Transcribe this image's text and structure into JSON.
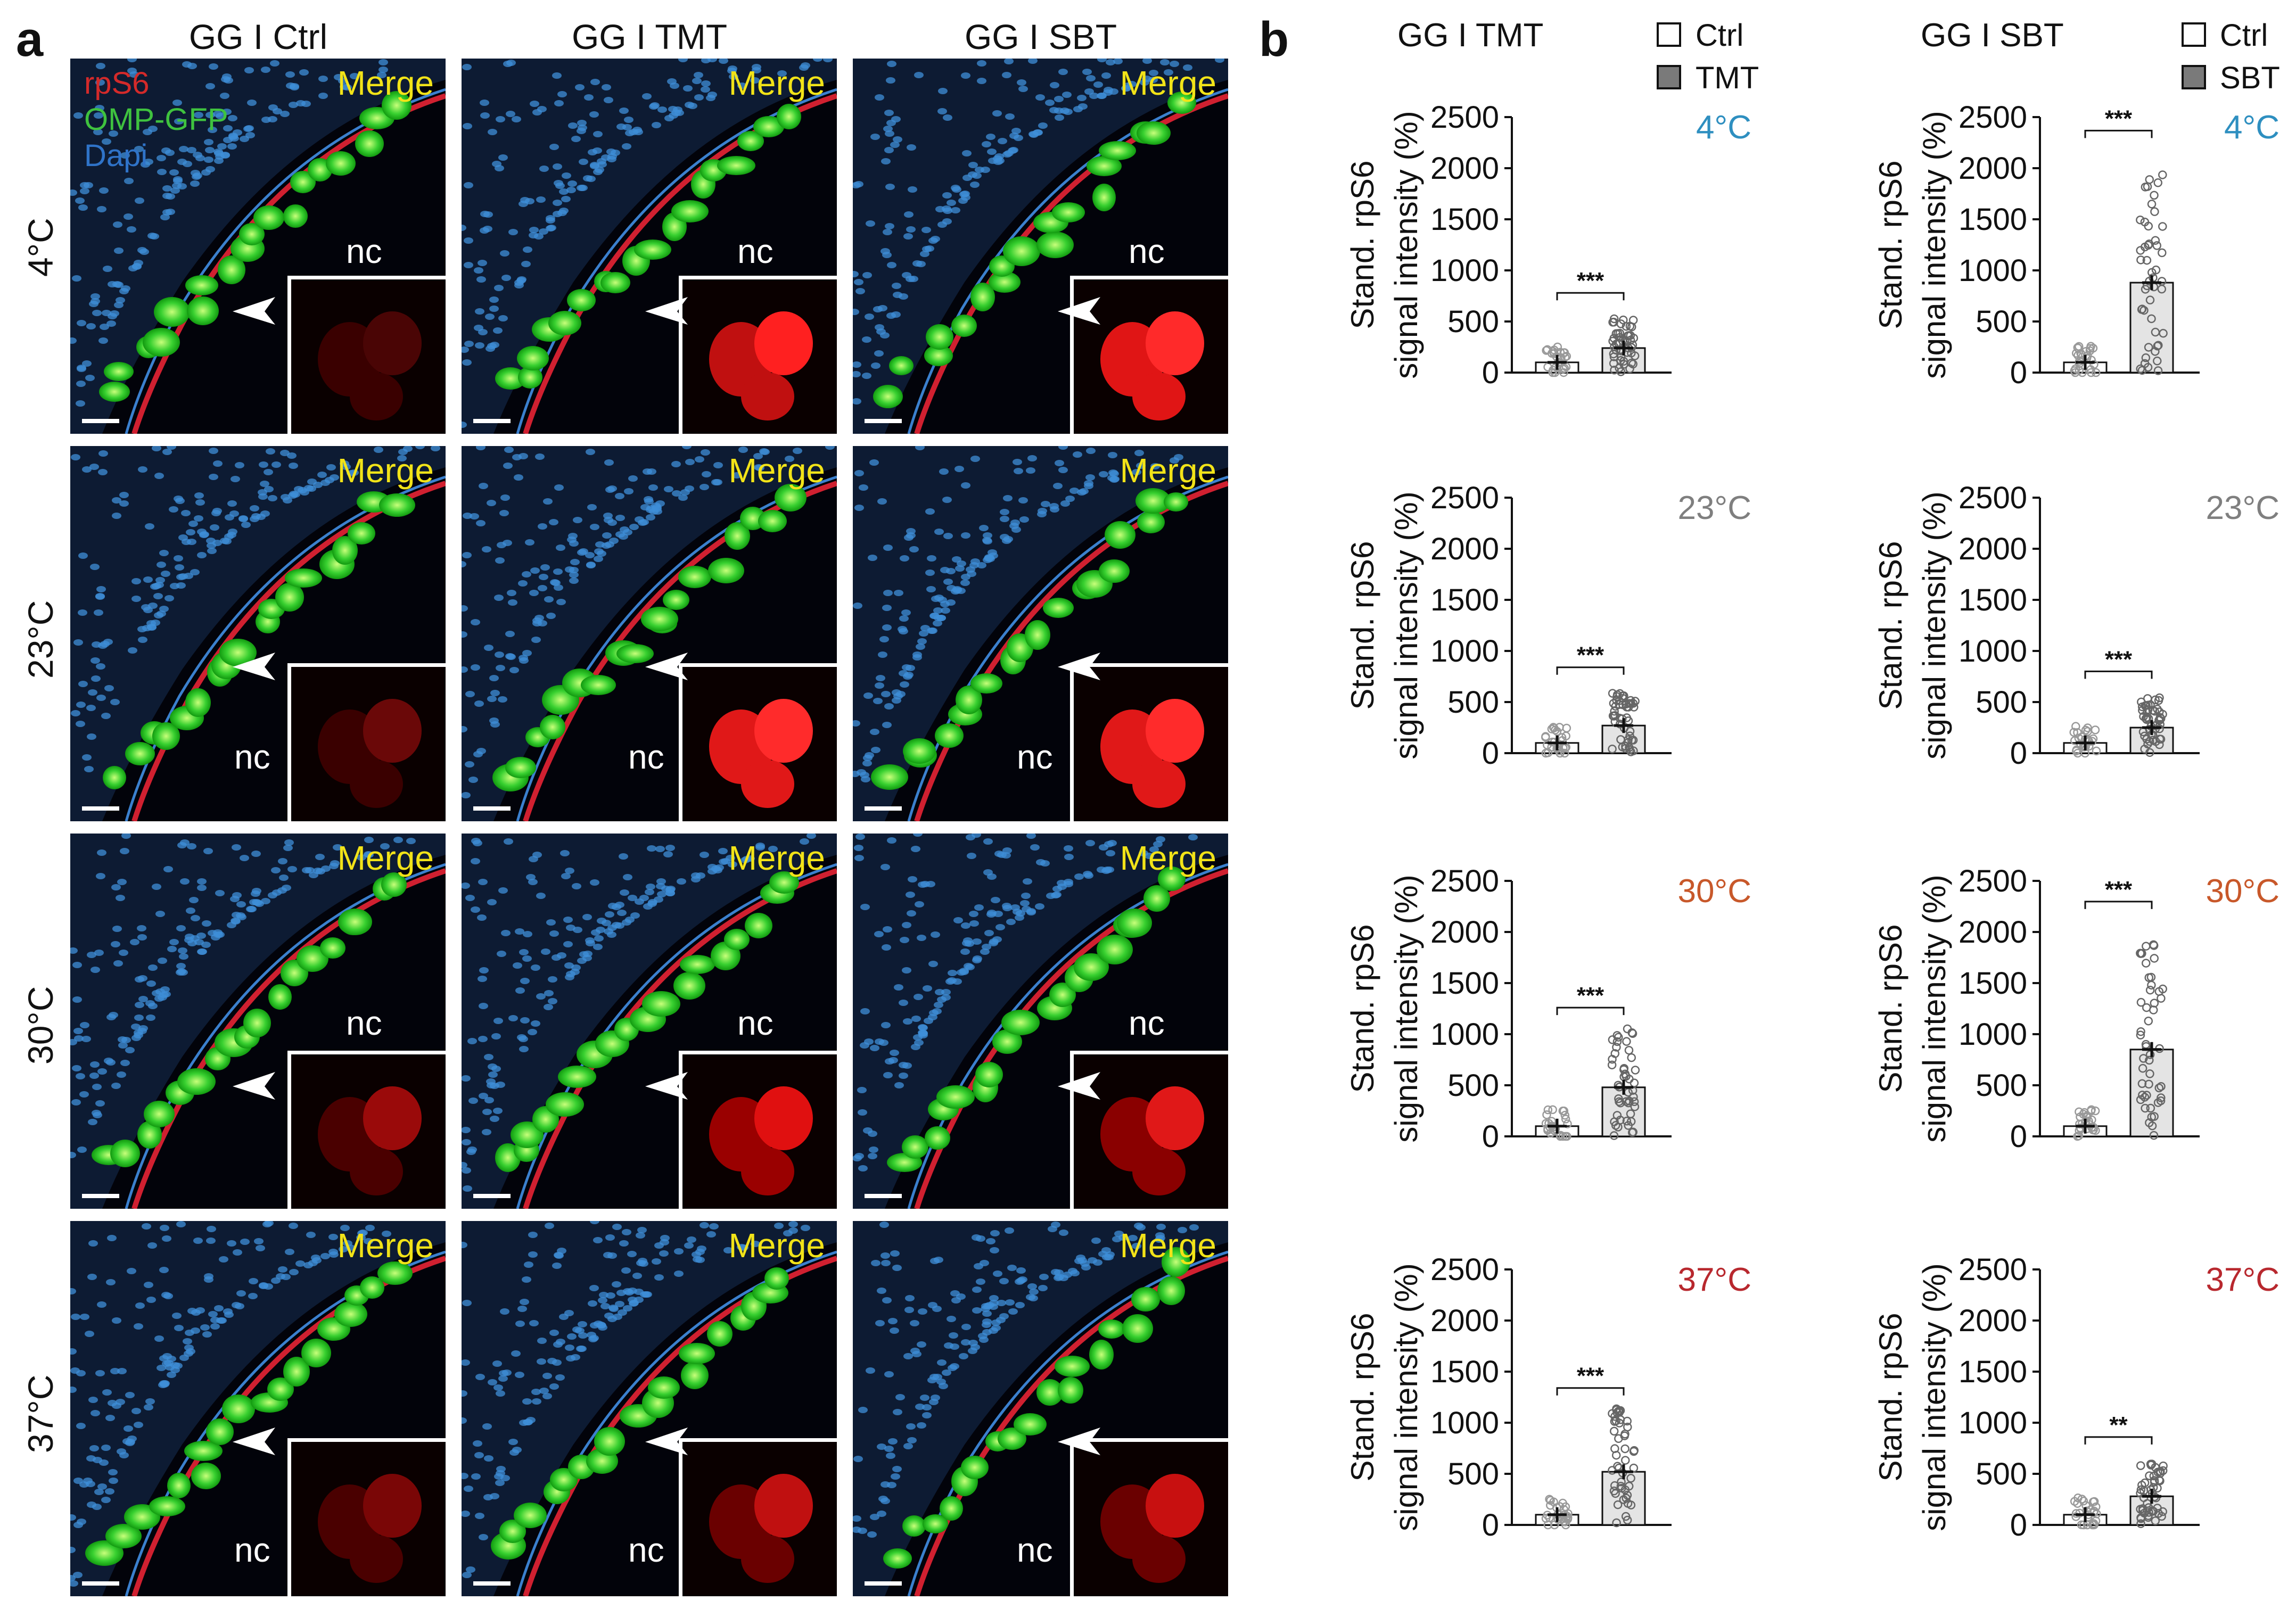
{
  "panel_a": {
    "letter": "a",
    "columns": [
      "GG I Ctrl",
      "GG I TMT",
      "GG I SBT"
    ],
    "rows": [
      "4°C",
      "23°C",
      "30°C",
      "37°C"
    ],
    "stain_labels": [
      {
        "text": "rpS6",
        "color": "#d42a2a"
      },
      {
        "text": "OMP-GFP",
        "color": "#3fc23f"
      },
      {
        "text": "Dapi",
        "color": "#2f73c8"
      }
    ],
    "merge_label": "Merge",
    "region_label": "nc"
  },
  "panel_b": {
    "letter": "b",
    "column_titles": [
      "GG I TMT",
      "GG I SBT"
    ],
    "legends": [
      [
        {
          "label": "Ctrl",
          "fill": "#ffffff"
        },
        {
          "label": "TMT",
          "fill": "#7a7a7a"
        }
      ],
      [
        {
          "label": "Ctrl",
          "fill": "#ffffff"
        },
        {
          "label": "SBT",
          "fill": "#7a7a7a"
        }
      ]
    ],
    "ylabel_line1": "Stand. rpS6",
    "ylabel_line2": "signal intensity (%)",
    "yticks": [
      "2500",
      "2000",
      "1500",
      "1000",
      "500",
      "0"
    ]
  },
  "chart_data": [
    {
      "type": "bar",
      "compound": "TMT",
      "temperature": "4°C",
      "temperature_color": "#2e8fc0",
      "categories": [
        "Ctrl",
        "TMT"
      ],
      "values": [
        100,
        240
      ],
      "significance": "***",
      "ylim": [
        0,
        2500
      ],
      "yticks": [
        0,
        500,
        1000,
        1500,
        2000,
        2500
      ]
    },
    {
      "type": "bar",
      "compound": "SBT",
      "temperature": "4°C",
      "temperature_color": "#2e8fc0",
      "categories": [
        "Ctrl",
        "SBT"
      ],
      "values": [
        100,
        880
      ],
      "significance": "***",
      "ylim": [
        0,
        2500
      ],
      "yticks": [
        0,
        500,
        1000,
        1500,
        2000,
        2500
      ]
    },
    {
      "type": "bar",
      "compound": "TMT",
      "temperature": "23°C",
      "temperature_color": "#7f7f7f",
      "categories": [
        "Ctrl",
        "TMT"
      ],
      "values": [
        100,
        270
      ],
      "significance": "***",
      "ylim": [
        0,
        2500
      ],
      "yticks": [
        0,
        500,
        1000,
        1500,
        2000,
        2500
      ]
    },
    {
      "type": "bar",
      "compound": "SBT",
      "temperature": "23°C",
      "temperature_color": "#7f7f7f",
      "categories": [
        "Ctrl",
        "SBT"
      ],
      "values": [
        100,
        250
      ],
      "significance": "***",
      "ylim": [
        0,
        2500
      ],
      "yticks": [
        0,
        500,
        1000,
        1500,
        2000,
        2500
      ]
    },
    {
      "type": "bar",
      "compound": "TMT",
      "temperature": "30°C",
      "temperature_color": "#c8582a",
      "categories": [
        "Ctrl",
        "TMT"
      ],
      "values": [
        100,
        480
      ],
      "significance": "***",
      "ylim": [
        0,
        2500
      ],
      "yticks": [
        0,
        500,
        1000,
        1500,
        2000,
        2500
      ]
    },
    {
      "type": "bar",
      "compound": "SBT",
      "temperature": "30°C",
      "temperature_color": "#c8582a",
      "categories": [
        "Ctrl",
        "SBT"
      ],
      "values": [
        100,
        850
      ],
      "significance": "***",
      "ylim": [
        0,
        2500
      ],
      "yticks": [
        0,
        500,
        1000,
        1500,
        2000,
        2500
      ]
    },
    {
      "type": "bar",
      "compound": "TMT",
      "temperature": "37°C",
      "temperature_color": "#b8282e",
      "categories": [
        "Ctrl",
        "TMT"
      ],
      "values": [
        100,
        520
      ],
      "significance": "***",
      "ylim": [
        0,
        2500
      ],
      "yticks": [
        0,
        500,
        1000,
        1500,
        2000,
        2500
      ]
    },
    {
      "type": "bar",
      "compound": "SBT",
      "temperature": "37°C",
      "temperature_color": "#b8282e",
      "categories": [
        "Ctrl",
        "SBT"
      ],
      "values": [
        100,
        280
      ],
      "significance": "**",
      "ylim": [
        0,
        2500
      ],
      "yticks": [
        0,
        500,
        1000,
        1500,
        2000,
        2500
      ]
    }
  ]
}
